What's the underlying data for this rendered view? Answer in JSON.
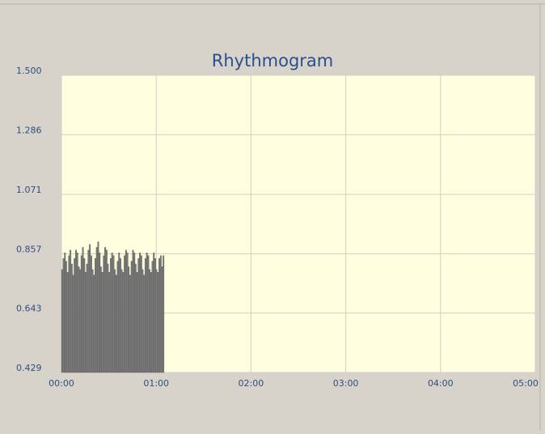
{
  "chart_data": {
    "type": "bar",
    "title": "Rhythmogram",
    "x": [
      0,
      0.9,
      1.8,
      2.6,
      3.5,
      4.4,
      5.3,
      6.2,
      7.0,
      7.9,
      8.8,
      9.7,
      10.6,
      11.4,
      12.3,
      13.2,
      14.1,
      15.0,
      15.8,
      16.7,
      17.6,
      18.5,
      19.4,
      20.2,
      21.1,
      22.0,
      22.9,
      23.8,
      24.6,
      25.5,
      26.4,
      27.3,
      28.2,
      29.0,
      29.9,
      30.8,
      31.7,
      32.6,
      33.4,
      34.3,
      35.2,
      36.1,
      37.0,
      37.8,
      38.7,
      39.6,
      40.5,
      41.4,
      42.2,
      43.1,
      44.0,
      44.9,
      45.8,
      46.6,
      47.5,
      48.4,
      49.3,
      50.2,
      51.0,
      51.9,
      52.8,
      53.7,
      54.6,
      55.4,
      56.3,
      57.2,
      58.1,
      59.0,
      59.8,
      60.7,
      61.6,
      62.5,
      63.4,
      64.2
    ],
    "values": [
      0.8,
      0.84,
      0.86,
      0.83,
      0.79,
      0.85,
      0.87,
      0.82,
      0.78,
      0.84,
      0.87,
      0.86,
      0.81,
      0.8,
      0.85,
      0.88,
      0.84,
      0.79,
      0.82,
      0.87,
      0.89,
      0.85,
      0.8,
      0.78,
      0.84,
      0.88,
      0.9,
      0.86,
      0.81,
      0.79,
      0.85,
      0.88,
      0.87,
      0.82,
      0.79,
      0.84,
      0.86,
      0.85,
      0.8,
      0.78,
      0.83,
      0.86,
      0.84,
      0.8,
      0.79,
      0.85,
      0.87,
      0.86,
      0.81,
      0.78,
      0.83,
      0.87,
      0.86,
      0.82,
      0.79,
      0.84,
      0.86,
      0.85,
      0.8,
      0.78,
      0.84,
      0.86,
      0.85,
      0.8,
      0.79,
      0.83,
      0.86,
      0.84,
      0.8,
      0.79,
      0.84,
      0.85,
      0.81,
      0.85
    ],
    "color": "#7c7c7c",
    "xlim": [
      0,
      300
    ],
    "xticks": [
      {
        "value": 0,
        "label": "00:00"
      },
      {
        "value": 60,
        "label": "01:00"
      },
      {
        "value": 120,
        "label": "02:00"
      },
      {
        "value": 180,
        "label": "03:00"
      },
      {
        "value": 240,
        "label": "04:00"
      },
      {
        "value": 300,
        "label": "05:00"
      }
    ],
    "ylim": [
      0.429,
      1.5
    ],
    "yticks": [
      0.429,
      0.643,
      0.857,
      1.071,
      1.286,
      {
        "value": 1.5,
        "label": "1.500"
      }
    ],
    "grid": true
  }
}
